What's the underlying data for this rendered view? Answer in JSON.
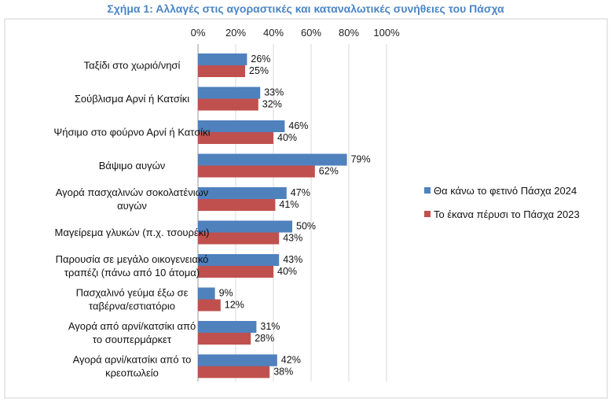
{
  "chart_data": {
    "type": "bar",
    "orientation": "horizontal",
    "title": "Σχήμα 1: Αλλαγές στις αγοραστικές και καταναλωτικές συνήθειες του Πάσχα",
    "xlim": [
      0,
      100
    ],
    "x_ticks": [
      "0%",
      "20%",
      "40%",
      "60%",
      "80%",
      "100%"
    ],
    "x_axis_position": "top",
    "grid": true,
    "legend_position": "right",
    "categories": [
      [
        "Ταξίδι στο χωριό/νησί"
      ],
      [
        "Σούβλισμα Αρνί ή Κατσίκι"
      ],
      [
        "Ψήσιμο στο φούρνο Αρνί ή Κατσίκι"
      ],
      [
        "Βάψιμο αυγών"
      ],
      [
        "Αγορά πασχαλινών σοκολατένιων",
        "αυγών"
      ],
      [
        "Μαγείρεμα γλυκών (π.χ. τσουρέκι)"
      ],
      [
        "Παρουσία σε μεγάλο οικογενειακό",
        "τραπέζι (πάνω από 10 άτομα)"
      ],
      [
        "Πασχαλινό γεύμα έξω σε",
        "ταβέρνα/εστιατόριο"
      ],
      [
        "Αγορά από αρνί/κατσίκι από",
        "το σουπερμάρκετ"
      ],
      [
        "Αγορά αρνί/κατσίκι από το",
        "κρεοπωλείο"
      ]
    ],
    "series": [
      {
        "name": "Θα κάνω το φετινό Πάσχα 2024",
        "color": "#4f81bd",
        "values": [
          26,
          33,
          46,
          79,
          47,
          50,
          43,
          9,
          31,
          42
        ]
      },
      {
        "name": "Το έκανα πέρυσι το Πάσχα 2023",
        "color": "#c0504d",
        "values": [
          25,
          32,
          40,
          62,
          41,
          43,
          40,
          12,
          28,
          38
        ]
      }
    ]
  }
}
